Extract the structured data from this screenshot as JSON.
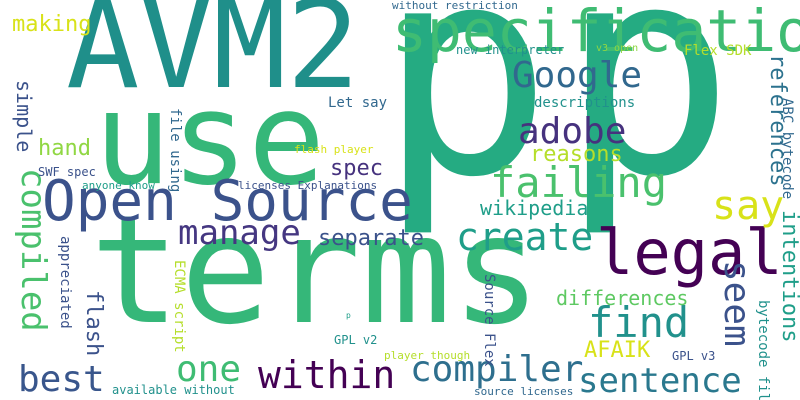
{
  "palette": {
    "dark_purple": "#440154",
    "indigo": "#3b528b",
    "blue": "#31688e",
    "teal": "#21918c",
    "teal_green": "#1f9e89",
    "green": "#35b779",
    "light_green": "#5ec962",
    "lime": "#90d743",
    "yellow_green": "#b5de2b",
    "yellow": "#d8e219"
  },
  "words": {
    "p1": "p",
    "p2": "p",
    "terms": "terms",
    "avm2": "AVM2",
    "use": "use",
    "specification": "specification",
    "open_source": "Open Source",
    "legal": "legal",
    "google": "Google",
    "adobe": "adobe",
    "failing": "failing",
    "create": "create",
    "manage": "manage",
    "say": "say",
    "find": "find",
    "compiler": "compiler",
    "within": "within",
    "one": "one",
    "best": "best",
    "sentence": "sentence",
    "compiled": "compiled",
    "seem": "seem",
    "references": "references",
    "intentions": "intentions",
    "reasons": "reasons",
    "separate": "separate",
    "wikipedia": "wikipedia",
    "differences": "differences",
    "afaik": "AFAIK",
    "spec": "spec",
    "simple": "simple",
    "hand": "hand",
    "making": "making",
    "flash": "flash",
    "descriptions": "descriptions",
    "let_say": "Let say",
    "flex_sdk": "Flex SDK",
    "new_interpreter": "new interpreter",
    "v3_open": "v3 open",
    "without_restriction": "without restriction",
    "abc_bytecode": "ABC bytecode",
    "bytecode_file": "bytecode file",
    "file_using": "file using",
    "flash_player": "flash player",
    "swf_spec": "SWF spec",
    "anyone_know": "anyone know",
    "licenses_explanations": "licenses Explanations",
    "appreciated": "appreciated",
    "ecma_script": "ECMA script",
    "source_flex": "Source Flex",
    "gpl_v2": "GPL v2",
    "gpl_v3": "GPL v3",
    "player_though": "player though",
    "available_without": "available without",
    "source_licenses": "source licenses",
    "p_small": "p"
  }
}
